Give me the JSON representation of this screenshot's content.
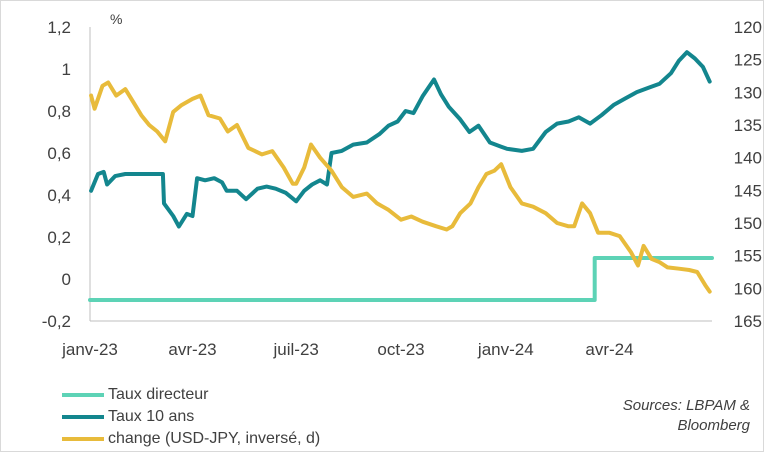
{
  "chart_data": {
    "type": "line",
    "title": "",
    "xlabel": "",
    "ylabel_left": "%",
    "ylabel_right": "",
    "x_tick_labels": [
      "janv-23",
      "avr-23",
      "juil-23",
      "oct-23",
      "janv-24",
      "avr-24"
    ],
    "x_range": [
      "2023-01-01",
      "2024-06-30"
    ],
    "y_left": {
      "ticks": [
        "1,2",
        "1",
        "0,8",
        "0,6",
        "0,4",
        "0,2",
        "0",
        "-0,2"
      ],
      "range": [
        -0.2,
        1.2
      ]
    },
    "y_right": {
      "ticks": [
        "120",
        "125",
        "130",
        "135",
        "140",
        "145",
        "150",
        "155",
        "160",
        "165"
      ],
      "range": [
        120,
        165
      ],
      "inverted": true
    },
    "grid": false,
    "legend_position": "bottom-left",
    "series": [
      {
        "name": "Taux directeur",
        "axis": "left",
        "color": "#5dd3b6",
        "points": [
          [
            "2023-01-01",
            -0.1
          ],
          [
            "2024-03-19",
            -0.1
          ],
          [
            "2024-03-19",
            0.1
          ],
          [
            "2024-06-30",
            0.1
          ]
        ]
      },
      {
        "name": "Taux 10 ans",
        "axis": "left",
        "color": "#13868e",
        "points": [
          [
            "2023-01-02",
            0.42
          ],
          [
            "2023-01-08",
            0.5
          ],
          [
            "2023-01-13",
            0.51
          ],
          [
            "2023-01-16",
            0.45
          ],
          [
            "2023-01-23",
            0.49
          ],
          [
            "2023-02-01",
            0.5
          ],
          [
            "2023-02-20",
            0.5
          ],
          [
            "2023-03-01",
            0.5
          ],
          [
            "2023-03-06",
            0.5
          ],
          [
            "2023-03-07",
            0.36
          ],
          [
            "2023-03-15",
            0.3
          ],
          [
            "2023-03-20",
            0.25
          ],
          [
            "2023-03-27",
            0.31
          ],
          [
            "2023-04-01",
            0.3
          ],
          [
            "2023-04-05",
            0.48
          ],
          [
            "2023-04-12",
            0.47
          ],
          [
            "2023-04-20",
            0.48
          ],
          [
            "2023-04-27",
            0.46
          ],
          [
            "2023-05-01",
            0.42
          ],
          [
            "2023-05-10",
            0.42
          ],
          [
            "2023-05-18",
            0.38
          ],
          [
            "2023-05-28",
            0.43
          ],
          [
            "2023-06-05",
            0.44
          ],
          [
            "2023-06-13",
            0.43
          ],
          [
            "2023-06-22",
            0.41
          ],
          [
            "2023-07-01",
            0.37
          ],
          [
            "2023-07-08",
            0.42
          ],
          [
            "2023-07-15",
            0.45
          ],
          [
            "2023-07-22",
            0.47
          ],
          [
            "2023-07-28",
            0.45
          ],
          [
            "2023-08-01",
            0.6
          ],
          [
            "2023-08-10",
            0.61
          ],
          [
            "2023-08-20",
            0.64
          ],
          [
            "2023-09-01",
            0.65
          ],
          [
            "2023-09-12",
            0.69
          ],
          [
            "2023-09-20",
            0.73
          ],
          [
            "2023-09-28",
            0.75
          ],
          [
            "2023-10-05",
            0.8
          ],
          [
            "2023-10-12",
            0.79
          ],
          [
            "2023-10-20",
            0.87
          ],
          [
            "2023-10-30",
            0.95
          ],
          [
            "2023-11-05",
            0.88
          ],
          [
            "2023-11-12",
            0.82
          ],
          [
            "2023-11-22",
            0.76
          ],
          [
            "2023-11-30",
            0.7
          ],
          [
            "2023-12-08",
            0.73
          ],
          [
            "2023-12-18",
            0.65
          ],
          [
            "2023-12-28",
            0.63
          ],
          [
            "2024-01-02",
            0.62
          ],
          [
            "2024-01-15",
            0.61
          ],
          [
            "2024-01-25",
            0.62
          ],
          [
            "2024-02-05",
            0.7
          ],
          [
            "2024-02-15",
            0.74
          ],
          [
            "2024-02-25",
            0.75
          ],
          [
            "2024-03-05",
            0.77
          ],
          [
            "2024-03-15",
            0.74
          ],
          [
            "2024-03-25",
            0.78
          ],
          [
            "2024-04-05",
            0.83
          ],
          [
            "2024-04-15",
            0.86
          ],
          [
            "2024-04-25",
            0.89
          ],
          [
            "2024-05-05",
            0.91
          ],
          [
            "2024-05-15",
            0.93
          ],
          [
            "2024-05-25",
            0.98
          ],
          [
            "2024-06-01",
            1.04
          ],
          [
            "2024-06-08",
            1.08
          ],
          [
            "2024-06-15",
            1.05
          ],
          [
            "2024-06-22",
            1.01
          ],
          [
            "2024-06-28",
            0.94
          ]
        ]
      },
      {
        "name": "change (USD-JPY, inversé, d)",
        "axis": "right",
        "color": "#e8bb3b",
        "points": [
          [
            "2023-01-02",
            130.5
          ],
          [
            "2023-01-05",
            132.5
          ],
          [
            "2023-01-12",
            129.0
          ],
          [
            "2023-01-17",
            128.5
          ],
          [
            "2023-01-24",
            130.5
          ],
          [
            "2023-02-01",
            129.5
          ],
          [
            "2023-02-08",
            131.5
          ],
          [
            "2023-02-15",
            133.5
          ],
          [
            "2023-02-22",
            135.0
          ],
          [
            "2023-03-01",
            136.0
          ],
          [
            "2023-03-08",
            137.5
          ],
          [
            "2023-03-15",
            133.0
          ],
          [
            "2023-03-22",
            132.0
          ],
          [
            "2023-04-01",
            131.0
          ],
          [
            "2023-04-08",
            130.5
          ],
          [
            "2023-04-15",
            133.5
          ],
          [
            "2023-04-25",
            134.0
          ],
          [
            "2023-05-02",
            136.0
          ],
          [
            "2023-05-10",
            135.0
          ],
          [
            "2023-05-20",
            138.5
          ],
          [
            "2023-06-01",
            139.5
          ],
          [
            "2023-06-10",
            139.0
          ],
          [
            "2023-06-20",
            141.5
          ],
          [
            "2023-06-28",
            144.0
          ],
          [
            "2023-07-01",
            144.0
          ],
          [
            "2023-07-08",
            141.5
          ],
          [
            "2023-07-14",
            138.0
          ],
          [
            "2023-07-22",
            140.0
          ],
          [
            "2023-08-01",
            142.0
          ],
          [
            "2023-08-10",
            144.5
          ],
          [
            "2023-08-20",
            146.0
          ],
          [
            "2023-09-01",
            145.5
          ],
          [
            "2023-09-10",
            147.0
          ],
          [
            "2023-09-20",
            148.0
          ],
          [
            "2023-10-01",
            149.5
          ],
          [
            "2023-10-10",
            149.0
          ],
          [
            "2023-10-20",
            149.8
          ],
          [
            "2023-11-01",
            150.5
          ],
          [
            "2023-11-10",
            151.0
          ],
          [
            "2023-11-15",
            150.5
          ],
          [
            "2023-11-22",
            148.5
          ],
          [
            "2023-12-01",
            147.0
          ],
          [
            "2023-12-08",
            144.5
          ],
          [
            "2023-12-15",
            142.5
          ],
          [
            "2023-12-22",
            142.0
          ],
          [
            "2023-12-28",
            141.0
          ],
          [
            "2024-01-05",
            144.5
          ],
          [
            "2024-01-15",
            147.0
          ],
          [
            "2024-01-25",
            147.5
          ],
          [
            "2024-02-05",
            148.5
          ],
          [
            "2024-02-15",
            150.0
          ],
          [
            "2024-02-25",
            150.5
          ],
          [
            "2024-03-01",
            150.5
          ],
          [
            "2024-03-08",
            147.0
          ],
          [
            "2024-03-15",
            148.5
          ],
          [
            "2024-03-22",
            151.5
          ],
          [
            "2024-04-01",
            151.5
          ],
          [
            "2024-04-10",
            152.0
          ],
          [
            "2024-04-20",
            154.5
          ],
          [
            "2024-04-26",
            156.5
          ],
          [
            "2024-05-01",
            153.5
          ],
          [
            "2024-05-08",
            155.5
          ],
          [
            "2024-05-15",
            156.0
          ],
          [
            "2024-05-22",
            156.8
          ],
          [
            "2024-06-01",
            157.0
          ],
          [
            "2024-06-10",
            157.2
          ],
          [
            "2024-06-17",
            157.5
          ],
          [
            "2024-06-24",
            159.5
          ],
          [
            "2024-06-28",
            160.5
          ]
        ]
      }
    ]
  },
  "source": {
    "line1": "Sources: LBPAM &",
    "line2": "Bloomberg"
  }
}
